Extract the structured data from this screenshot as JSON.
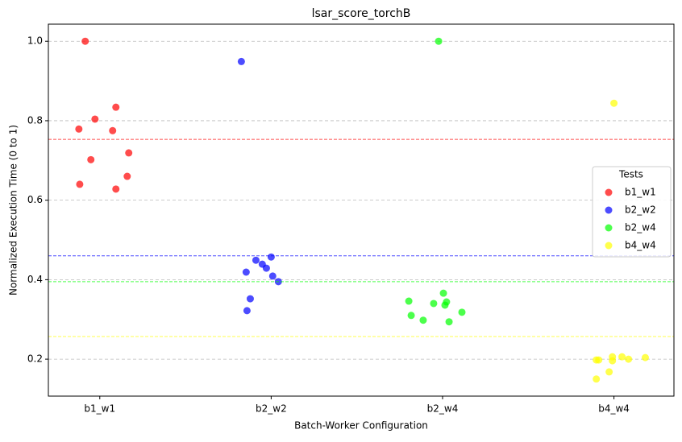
{
  "chart_data": {
    "type": "scatter",
    "title": "lsar_score_torchB",
    "x_label": "Batch-Worker Configuration",
    "y_label": "Normalized Execution Time (0 to 1)",
    "xlim": [
      -0.3,
      3.35
    ],
    "ylim": [
      0.107,
      1.043
    ],
    "xticks": [
      {
        "value": 0,
        "label": "b1_w1"
      },
      {
        "value": 1,
        "label": "b2_w2"
      },
      {
        "value": 2,
        "label": "b2_w4"
      },
      {
        "value": 3,
        "label": "b4_w4"
      }
    ],
    "yticks": [
      {
        "value": 0.2,
        "label": "0.2"
      },
      {
        "value": 0.4,
        "label": "0.4"
      },
      {
        "value": 0.6,
        "label": "0.6"
      },
      {
        "value": 0.8,
        "label": "0.8"
      },
      {
        "value": 1.0,
        "label": "1.0"
      }
    ],
    "grid": true,
    "legend_title": "Tests",
    "legend_position": "right",
    "series": [
      {
        "name": "b1_w1",
        "color": "#ff0000",
        "mean": 0.753,
        "x": [
          -0.085,
          0.094,
          -0.028,
          -0.122,
          0.075,
          0.169,
          -0.052,
          0.16,
          -0.117,
          0.094
        ],
        "values": [
          1.0,
          0.834,
          0.804,
          0.779,
          0.775,
          0.719,
          0.702,
          0.66,
          0.64,
          0.628
        ]
      },
      {
        "name": "b2_w2",
        "color": "#0000ff",
        "mean": 0.46,
        "x": [
          0.826,
          0.911,
          1.0,
          0.948,
          0.972,
          0.854,
          1.009,
          1.042,
          0.878,
          0.859
        ],
        "values": [
          0.949,
          0.449,
          0.457,
          0.439,
          0.429,
          0.419,
          0.409,
          0.395,
          0.352,
          0.322
        ]
      },
      {
        "name": "b2_w4",
        "color": "#00ff00",
        "mean": 0.395,
        "x": [
          1.977,
          2.005,
          1.803,
          2.023,
          1.948,
          2.014,
          2.113,
          1.817,
          1.887,
          2.038
        ],
        "values": [
          1.0,
          0.366,
          0.346,
          0.344,
          0.34,
          0.336,
          0.318,
          0.31,
          0.298,
          0.294
        ]
      },
      {
        "name": "b4_w4",
        "color": "#ffff00",
        "mean": 0.257,
        "x": [
          3.0,
          2.991,
          3.047,
          3.183,
          3.085,
          2.897,
          2.911,
          2.991,
          2.972,
          2.897
        ],
        "values": [
          0.844,
          0.206,
          0.206,
          0.204,
          0.2,
          0.198,
          0.198,
          0.196,
          0.168,
          0.15
        ]
      }
    ]
  }
}
